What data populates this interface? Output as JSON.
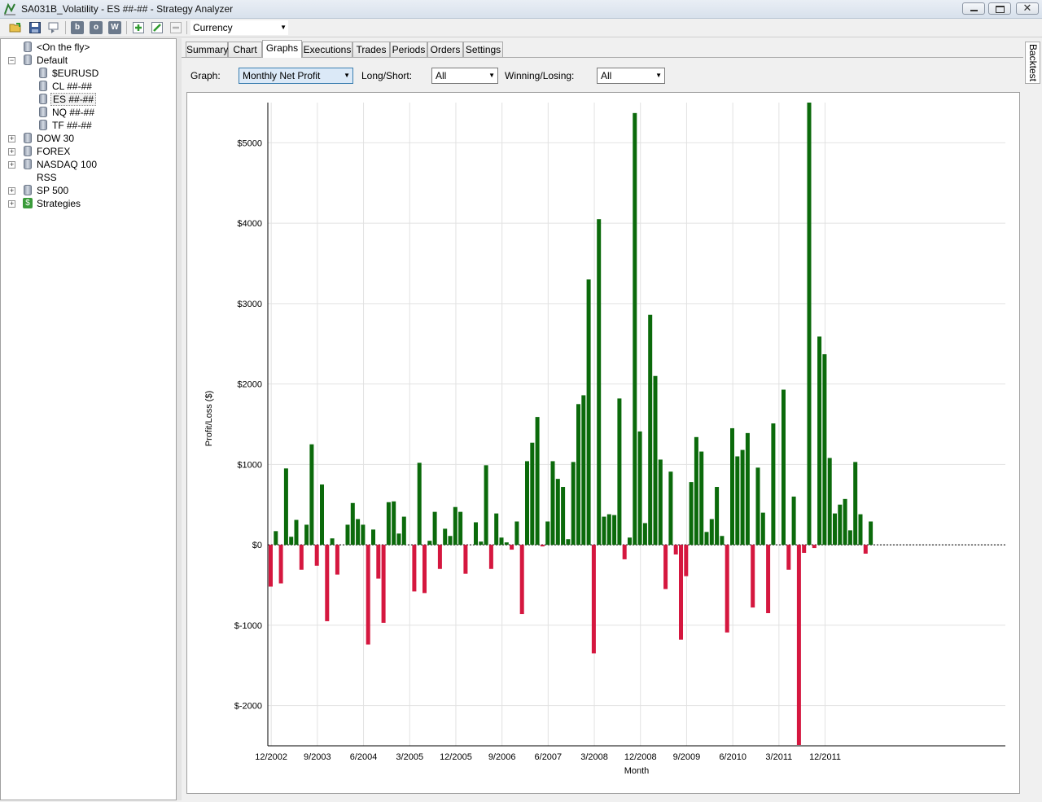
{
  "window": {
    "title": "SA031B_Volatility - ES ##-## - Strategy Analyzer"
  },
  "toolbar": {
    "b_label": "b",
    "o_label": "o",
    "w_label": "W",
    "currency": "Currency"
  },
  "tree": {
    "items": [
      {
        "label": "<On the fly>"
      },
      {
        "label": "Default",
        "expander": "−"
      },
      {
        "label": "$EURUSD"
      },
      {
        "label": "CL ##-##"
      },
      {
        "label": "ES ##-##"
      },
      {
        "label": "NQ ##-##"
      },
      {
        "label": "TF ##-##"
      },
      {
        "label": "DOW 30",
        "expander": "+"
      },
      {
        "label": "FOREX",
        "expander": "+"
      },
      {
        "label": "NASDAQ 100",
        "expander": "+"
      },
      {
        "label": "RSS"
      },
      {
        "label": "SP 500",
        "expander": "+"
      },
      {
        "label": "Strategies",
        "expander": "+"
      }
    ],
    "dollar_glyph": "$"
  },
  "tabs": [
    "Summary",
    "Chart",
    "Graphs",
    "Executions",
    "Trades",
    "Periods",
    "Orders",
    "Settings"
  ],
  "active_tab": "Graphs",
  "filters": {
    "graph_label": "Graph:",
    "graph_value": "Monthly Net Profit",
    "longshort_label": "Long/Short:",
    "longshort_value": "All",
    "winlose_label": "Winning/Losing:",
    "winlose_value": "All"
  },
  "side_tab": "Backtest",
  "colors": {
    "positive": "#0b6a0b",
    "negative": "#d5173f"
  },
  "chart_data": {
    "type": "bar",
    "xlabel": "Month",
    "ylabel": "Profit/Loss ($)",
    "ylim": [
      -2500,
      5500
    ],
    "yticks": [
      -2000,
      -1000,
      0,
      1000,
      2000,
      3000,
      4000,
      5000
    ],
    "ytick_labels": [
      "$-2000",
      "$-1000",
      "$0",
      "$1000",
      "$2000",
      "$3000",
      "$4000",
      "$5000"
    ],
    "xtick_labels": [
      "12/2002",
      "9/2003",
      "6/2004",
      "3/2005",
      "12/2005",
      "9/2006",
      "6/2007",
      "3/2008",
      "12/2008",
      "9/2009",
      "6/2010",
      "3/2011",
      "12/2011"
    ],
    "start_month": "12/2002",
    "grid": true,
    "values": [
      -520,
      170,
      -480,
      950,
      100,
      310,
      -310,
      250,
      1250,
      -260,
      750,
      -950,
      80,
      -370,
      0,
      250,
      520,
      320,
      250,
      -1240,
      190,
      -420,
      -970,
      530,
      540,
      140,
      350,
      0,
      -580,
      1020,
      -600,
      50,
      410,
      -300,
      200,
      110,
      470,
      410,
      -360,
      0,
      280,
      40,
      990,
      -300,
      390,
      90,
      30,
      -60,
      290,
      -860,
      1040,
      1270,
      1590,
      -20,
      290,
      1040,
      820,
      720,
      70,
      1030,
      1750,
      1860,
      3300,
      -1350,
      4050,
      350,
      380,
      370,
      1820,
      -180,
      90,
      5370,
      1410,
      270,
      2860,
      2100,
      1060,
      -550,
      910,
      -120,
      -1180,
      -390,
      780,
      1340,
      1160,
      160,
      320,
      720,
      110,
      -1090,
      1450,
      1100,
      1180,
      1390,
      -780,
      960,
      400,
      -850,
      1510,
      0,
      1930,
      -310,
      600,
      -2490,
      -100,
      5500,
      -40,
      2590,
      2370,
      1080,
      390,
      500,
      570,
      180,
      1030,
      380,
      -110,
      290
    ]
  }
}
